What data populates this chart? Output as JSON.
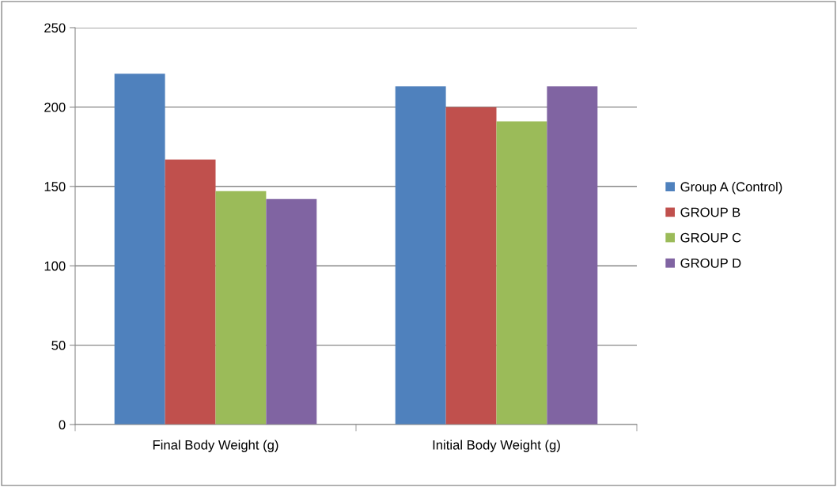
{
  "chart_data": {
    "type": "bar",
    "categories": [
      "Final Body Weight (g)",
      "Initial Body Weight (g)"
    ],
    "series": [
      {
        "name": "Group A (Control)",
        "color": "#4f81bd",
        "values": [
          221,
          213
        ]
      },
      {
        "name": "GROUP B",
        "color": "#c0504d",
        "values": [
          167,
          200
        ]
      },
      {
        "name": "GROUP C",
        "color": "#9bbb59",
        "values": [
          147,
          191
        ]
      },
      {
        "name": "GROUP D",
        "color": "#8064a2",
        "values": [
          142,
          213
        ]
      }
    ],
    "ylim": [
      0,
      250
    ],
    "yticks": [
      0,
      50,
      100,
      150,
      200,
      250
    ],
    "grid": "y",
    "legend": "right"
  }
}
